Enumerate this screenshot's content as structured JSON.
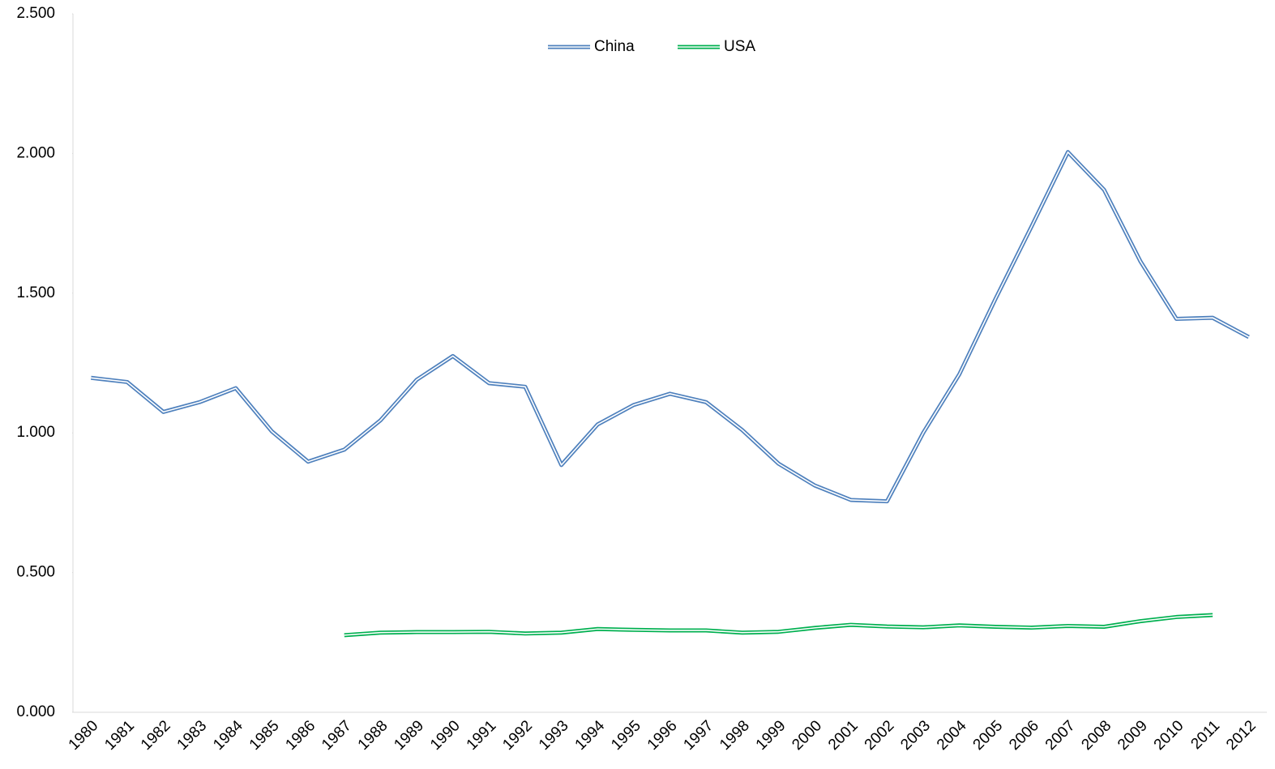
{
  "chart_data": {
    "type": "line",
    "categories": [
      "1980",
      "1981",
      "1982",
      "1983",
      "1984",
      "1985",
      "1986",
      "1987",
      "1988",
      "1989",
      "1990",
      "1991",
      "1992",
      "1993",
      "1994",
      "1995",
      "1996",
      "1997",
      "1998",
      "1999",
      "2000",
      "2001",
      "2002",
      "2003",
      "2004",
      "2005",
      "2006",
      "2007",
      "2008",
      "2009",
      "2010",
      "2011",
      "2012"
    ],
    "series": [
      {
        "name": "China",
        "color": "#4f81bd",
        "values": [
          1.197,
          1.182,
          1.075,
          1.11,
          1.16,
          1.005,
          0.897,
          0.94,
          1.045,
          1.19,
          1.275,
          1.178,
          1.165,
          0.885,
          1.03,
          1.1,
          1.14,
          1.11,
          1.01,
          0.89,
          0.812,
          0.76,
          0.755,
          1.0,
          1.21,
          1.48,
          1.74,
          2.005,
          1.87,
          1.615,
          1.408,
          1.412,
          1.343
        ]
      },
      {
        "name": "USA",
        "color": "#00b050",
        "values": [
          null,
          null,
          null,
          null,
          null,
          null,
          null,
          0.276,
          0.285,
          0.287,
          0.287,
          0.288,
          0.282,
          0.285,
          0.298,
          0.295,
          0.293,
          0.293,
          0.285,
          0.288,
          0.302,
          0.313,
          0.307,
          0.304,
          0.311,
          0.306,
          0.303,
          0.309,
          0.306,
          0.326,
          0.341,
          0.348,
          null
        ]
      }
    ],
    "ylim": [
      0,
      2.5
    ],
    "yticks": [
      {
        "value": 0,
        "label": "0.000"
      },
      {
        "value": 0.5,
        "label": "0.500"
      },
      {
        "value": 1,
        "label": "1.000"
      },
      {
        "value": 1.5,
        "label": "1.500"
      },
      {
        "value": 2,
        "label": "2.000"
      },
      {
        "value": 2.5,
        "label": "2.500"
      }
    ],
    "legend": "top"
  }
}
